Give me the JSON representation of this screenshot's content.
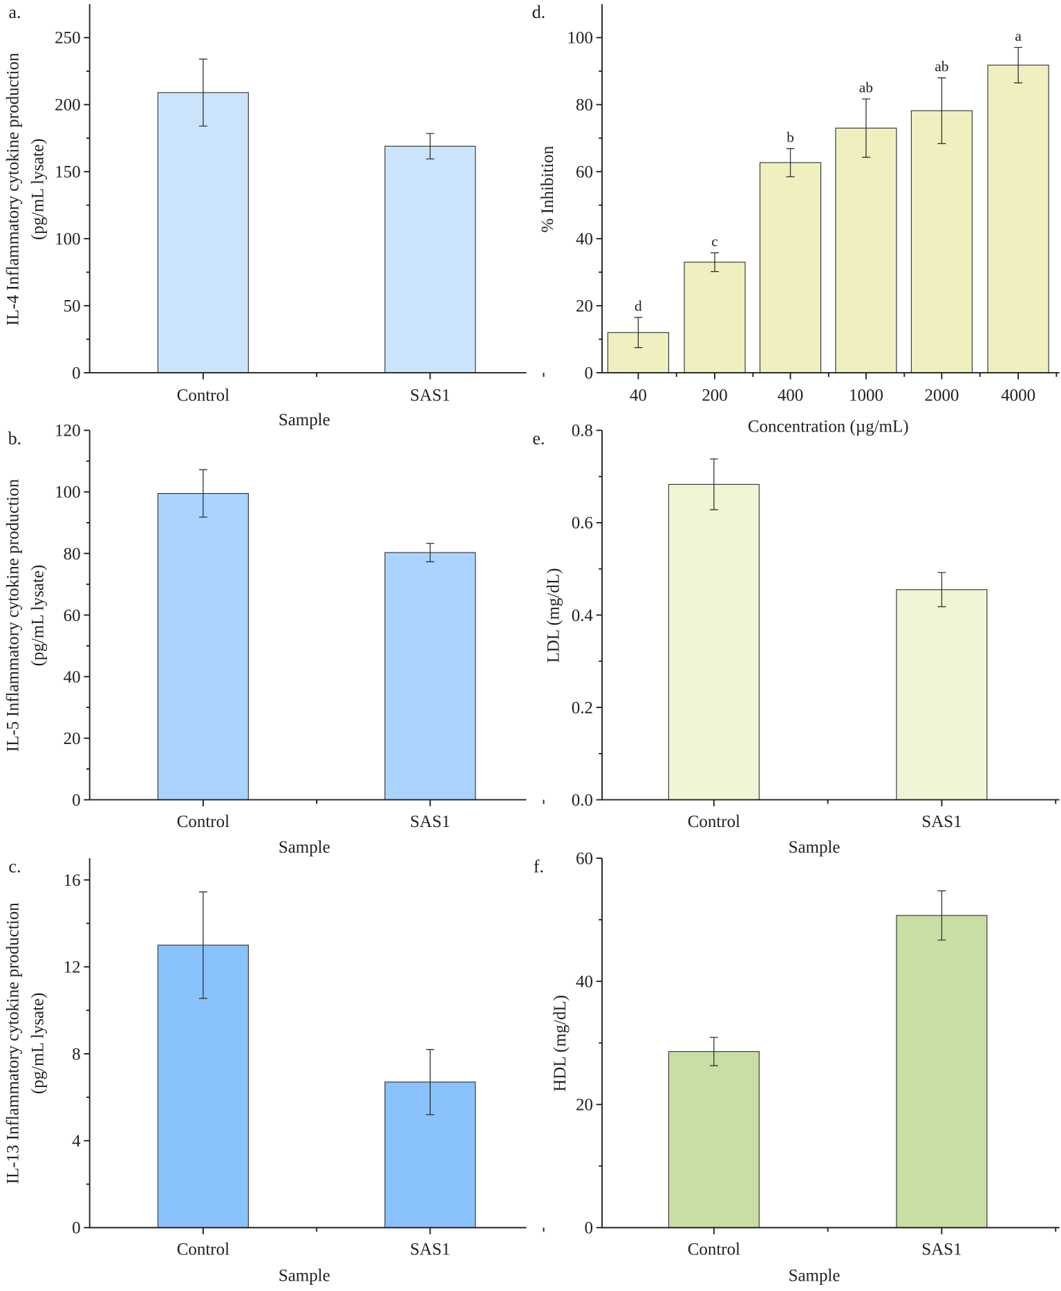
{
  "chart_data": [
    {
      "id": "a",
      "panel_label": "a.",
      "type": "bar",
      "categories": [
        "Control",
        "SAS1"
      ],
      "values": [
        209,
        169
      ],
      "errors": [
        25,
        9.5
      ],
      "xlabel": "Sample",
      "ylabel": [
        "IL-4 Inflammatory cytokine production",
        "(pg/mL lysate)"
      ],
      "ylim": [
        0,
        275
      ],
      "yticks": [
        "0",
        "50",
        "100",
        "150",
        "200",
        "250"
      ],
      "ytick_values": [
        0,
        50,
        100,
        150,
        200,
        250
      ],
      "minor_step": 25,
      "color": "#cce4fb",
      "grid": false
    },
    {
      "id": "b",
      "panel_label": "b.",
      "type": "bar",
      "categories": [
        "Control",
        "SAS1"
      ],
      "values": [
        99.5,
        80.3
      ],
      "errors": [
        7.7,
        3.0
      ],
      "xlabel": "Sample",
      "ylabel": [
        "IL-5 Inflammatory cytokine production",
        "(pg/mL lysate)"
      ],
      "ylim": [
        0,
        120
      ],
      "yticks": [
        "0",
        "20",
        "40",
        "60",
        "80",
        "100",
        "120"
      ],
      "ytick_values": [
        0,
        20,
        40,
        60,
        80,
        100,
        120
      ],
      "minor_step": 10,
      "color": "#aad3fd",
      "grid": false
    },
    {
      "id": "c",
      "panel_label": "c.",
      "type": "bar",
      "categories": [
        "Control",
        "SAS1"
      ],
      "values": [
        13.0,
        6.7
      ],
      "errors": [
        2.45,
        1.5
      ],
      "xlabel": "Sample",
      "ylabel": [
        "IL-13 Inflammatory cytokine production",
        "(pg/mL lysate)"
      ],
      "ylim": [
        0,
        17
      ],
      "yticks": [
        "0",
        "4",
        "8",
        "12",
        "16"
      ],
      "ytick_values": [
        0,
        4,
        8,
        12,
        16
      ],
      "minor_step": 2,
      "color": "#89c2fd",
      "grid": false
    },
    {
      "id": "d",
      "panel_label": "d.",
      "type": "bar",
      "categories": [
        "40",
        "200",
        "400",
        "1000",
        "2000",
        "4000"
      ],
      "values": [
        12.0,
        33.0,
        62.7,
        73.0,
        78.2,
        91.8
      ],
      "errors": [
        4.5,
        2.8,
        4.2,
        8.7,
        9.8,
        5.3
      ],
      "significance": [
        "d",
        "c",
        "b",
        "ab",
        "ab",
        "a"
      ],
      "xlabel": "Concentration (µg/mL)",
      "ylabel": [
        "% Inhibition"
      ],
      "ylim": [
        0,
        110
      ],
      "yticks": [
        "0",
        "20",
        "40",
        "60",
        "80",
        "100"
      ],
      "ytick_values": [
        0,
        20,
        40,
        60,
        80,
        100
      ],
      "minor_step": 10,
      "color": "#f0efbf",
      "grid": false
    },
    {
      "id": "e",
      "panel_label": "e.",
      "type": "bar",
      "categories": [
        "Control",
        "SAS1"
      ],
      "values": [
        0.683,
        0.455
      ],
      "errors": [
        0.055,
        0.037
      ],
      "xlabel": "Sample",
      "ylabel": [
        "LDL (mg/dL)"
      ],
      "ylim": [
        0,
        0.8
      ],
      "yticks": [
        "0.0",
        "0.2",
        "0.4",
        "0.6",
        "0.8"
      ],
      "ytick_values": [
        0,
        0.2,
        0.4,
        0.6,
        0.8
      ],
      "minor_step": 0.1,
      "color": "#f0f6d5",
      "grid": false
    },
    {
      "id": "f",
      "panel_label": "f.",
      "type": "bar",
      "categories": [
        "Control",
        "SAS1"
      ],
      "values": [
        28.6,
        50.7
      ],
      "errors": [
        2.3,
        4.0
      ],
      "xlabel": "Sample",
      "ylabel": [
        "HDL (mg/dL)"
      ],
      "ylim": [
        0,
        60
      ],
      "yticks": [
        "0",
        "20",
        "40",
        "60"
      ],
      "ytick_values": [
        0,
        20,
        40,
        60
      ],
      "minor_step": 10,
      "color": "#c9dea4",
      "grid": false
    }
  ]
}
